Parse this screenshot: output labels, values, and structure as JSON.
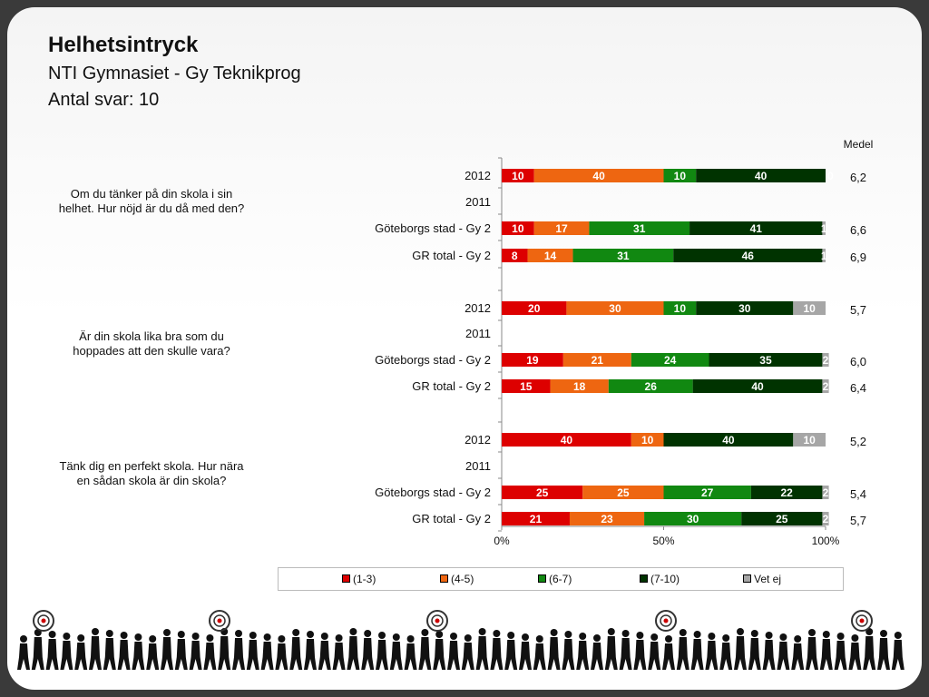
{
  "title": "Helhetsintryck",
  "subtitle": "NTI Gymnasiet  - Gy Teknikprog",
  "responses": "Antal svar: 10",
  "medel_header": "Medel",
  "colors": {
    "c13": "#dd0000",
    "c45": "#ee6611",
    "c67": "#118811",
    "c710": "#003300",
    "vet": "#a6a6a6"
  },
  "legend": [
    "(1-3)",
    "(4-5)",
    "(6-7)",
    "(7-10)",
    "Vet ej"
  ],
  "chart_data": {
    "type": "bar",
    "orientation": "horizontal",
    "stacked": "percent",
    "xlim": [
      0,
      100
    ],
    "x_ticks": [
      "0%",
      "50%",
      "100%"
    ],
    "series_names": [
      "(1-3)",
      "(4-5)",
      "(6-7)",
      "(7-10)",
      "Vet ej"
    ],
    "questions": [
      {
        "text": "Om du tänker på din skola i sin helhet. Hur nöjd är du då med den?",
        "rows": [
          {
            "label": "2012",
            "values": [
              10,
              40,
              10,
              40,
              0
            ],
            "medel": "6,2"
          },
          {
            "label": "2011",
            "values": [],
            "medel": ""
          },
          {
            "label": "Göteborgs stad  - Gy 2",
            "values": [
              10,
              17,
              31,
              41,
              1
            ],
            "medel": "6,6"
          },
          {
            "label": "GR total - Gy 2",
            "values": [
              8,
              14,
              31,
              46,
              1
            ],
            "medel": "6,9"
          }
        ]
      },
      {
        "text": "Är din skola lika bra som du hoppades att den skulle vara?",
        "rows": [
          {
            "label": "2012",
            "values": [
              20,
              30,
              10,
              30,
              10
            ],
            "medel": "5,7"
          },
          {
            "label": "2011",
            "values": [],
            "medel": ""
          },
          {
            "label": "Göteborgs stad  - Gy 2",
            "values": [
              19,
              21,
              24,
              35,
              2
            ],
            "medel": "6,0"
          },
          {
            "label": "GR total - Gy 2",
            "values": [
              15,
              18,
              26,
              40,
              2
            ],
            "medel": "6,4"
          }
        ]
      },
      {
        "text": "Tänk dig en perfekt skola. Hur nära en sådan skola är din skola?",
        "rows": [
          {
            "label": "2012",
            "values": [
              40,
              10,
              0,
              40,
              10
            ],
            "medel": "5,2"
          },
          {
            "label": "2011",
            "values": [],
            "medel": ""
          },
          {
            "label": "Göteborgs stad  - Gy 2",
            "values": [
              25,
              25,
              27,
              22,
              2
            ],
            "medel": "5,4"
          },
          {
            "label": "GR total - Gy 2",
            "values": [
              21,
              23,
              30,
              25,
              2
            ],
            "medel": "5,7"
          }
        ]
      }
    ]
  }
}
